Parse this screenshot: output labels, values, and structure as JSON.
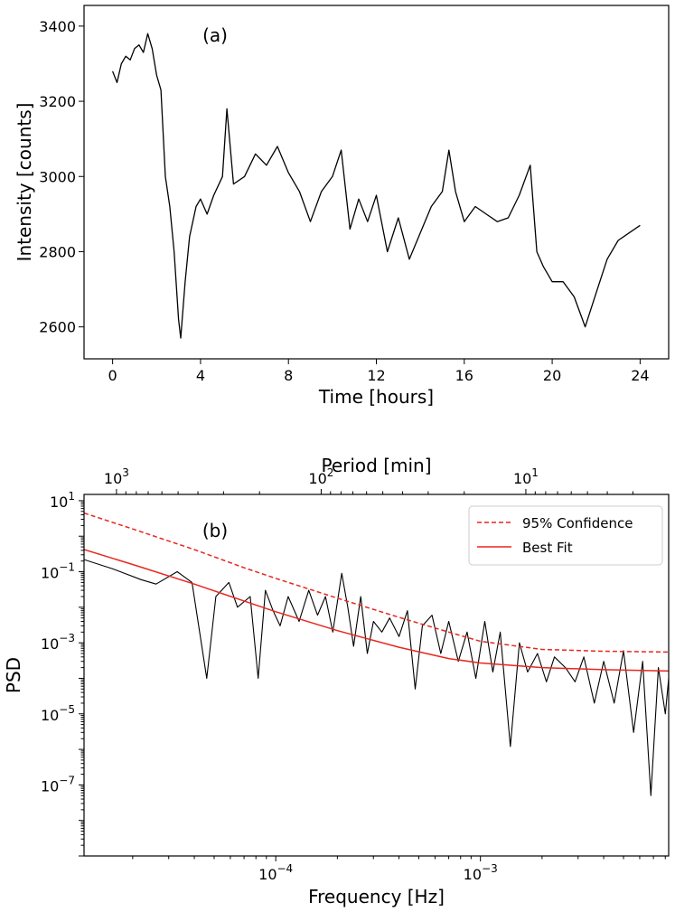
{
  "chart_data": [
    {
      "type": "line",
      "panel_label": "(a)",
      "xlabel": "Time [hours]",
      "ylabel": "Intensity [counts]",
      "xlim": [
        -1.3,
        25.3
      ],
      "ylim": [
        2515,
        3455
      ],
      "x_ticks": [
        0,
        4,
        8,
        12,
        16,
        20,
        24
      ],
      "x_tick_labels": [
        "0",
        "4",
        "8",
        "12",
        "16",
        "20",
        "24"
      ],
      "y_ticks": [
        2600,
        2800,
        3000,
        3200,
        3400
      ],
      "y_tick_labels": [
        "2600",
        "2800",
        "3000",
        "3200",
        "3400"
      ],
      "grid": false,
      "series": [
        {
          "color": "#000000",
          "x": [
            0,
            0.2,
            0.4,
            0.6,
            0.8,
            1.0,
            1.2,
            1.4,
            1.6,
            1.8,
            2.0,
            2.2,
            2.4,
            2.6,
            2.8,
            3.0,
            3.1,
            3.3,
            3.5,
            3.8,
            4.0,
            4.3,
            4.6,
            5.0,
            5.2,
            5.5,
            6.0,
            6.5,
            7.0,
            7.5,
            8.0,
            8.5,
            9.0,
            9.5,
            10.0,
            10.4,
            10.8,
            11.2,
            11.6,
            12.0,
            12.5,
            13.0,
            13.5,
            14.0,
            14.5,
            15.0,
            15.3,
            15.6,
            16.0,
            16.5,
            17.0,
            17.5,
            18.0,
            18.5,
            19.0,
            19.3,
            19.6,
            20.0,
            20.5,
            21.0,
            21.5,
            22.0,
            22.5,
            23.0,
            23.5,
            24.0
          ],
          "values": [
            3280,
            3250,
            3300,
            3320,
            3310,
            3340,
            3350,
            3330,
            3380,
            3340,
            3270,
            3230,
            3000,
            2920,
            2800,
            2620,
            2570,
            2720,
            2840,
            2920,
            2940,
            2900,
            2950,
            3000,
            3180,
            2980,
            3000,
            3060,
            3030,
            3080,
            3010,
            2960,
            2880,
            2960,
            3000,
            3070,
            2860,
            2940,
            2880,
            2950,
            2800,
            2890,
            2780,
            2850,
            2920,
            2960,
            3070,
            2960,
            2880,
            2920,
            2900,
            2880,
            2890,
            2950,
            3030,
            2800,
            2760,
            2720,
            2720,
            2680,
            2600,
            2690,
            2780,
            2830,
            2850,
            2870
          ]
        }
      ]
    },
    {
      "type": "line",
      "panel_label": "(b)",
      "xlabel": "Frequency [Hz]",
      "ylabel": "PSD",
      "x_scale": "log",
      "y_scale": "log",
      "xlim": [
        1.157e-05,
        0.00831
      ],
      "ylim": [
        1e-09,
        15
      ],
      "x_ticks": [
        0.0001,
        0.001
      ],
      "x_tick_labels": [
        {
          "base": "10",
          "exp": "−4"
        },
        {
          "base": "10",
          "exp": "−3"
        }
      ],
      "y_ticks": [
        1e-07,
        1e-05,
        0.001,
        0.1,
        10
      ],
      "y_tick_labels": [
        {
          "base": "10",
          "exp": "−7"
        },
        {
          "base": "10",
          "exp": "−5"
        },
        {
          "base": "10",
          "exp": "−3"
        },
        {
          "base": "10",
          "exp": "−1"
        },
        {
          "base": "10",
          "exp": "1"
        }
      ],
      "top_axis": {
        "label": "Period [min]",
        "ticks": [
          1000,
          100,
          10
        ],
        "tick_labels": [
          {
            "base": "10",
            "exp": "3"
          },
          {
            "base": "10",
            "exp": "2"
          },
          {
            "base": "10",
            "exp": "1"
          }
        ]
      },
      "legend_position": "top-right",
      "grid": false,
      "series": [
        {
          "name": "95% Confidence",
          "color": "#e8271e",
          "style": "dashed",
          "x": [
            1.157e-05,
            2e-05,
            4e-05,
            7e-05,
            0.0001,
            0.0002,
            0.0004,
            0.0007,
            0.001,
            0.002,
            0.004,
            0.00831
          ],
          "values": [
            4.5,
            1.6,
            0.42,
            0.13,
            0.065,
            0.018,
            0.0052,
            0.002,
            0.0011,
            0.00065,
            0.00058,
            0.00055
          ]
        },
        {
          "name": "Best Fit",
          "color": "#e8271e",
          "style": "solid",
          "x": [
            1.157e-05,
            2e-05,
            4e-05,
            7e-05,
            0.0001,
            0.0002,
            0.0004,
            0.0007,
            0.001,
            0.002,
            0.004,
            0.00831
          ],
          "values": [
            0.42,
            0.16,
            0.045,
            0.015,
            0.0075,
            0.0022,
            0.00075,
            0.00036,
            0.00027,
            0.0002,
            0.000175,
            0.00016
          ]
        },
        {
          "color": "#000000",
          "style": "solid",
          "x": [
            1.157e-05,
            1.6e-05,
            2.2e-05,
            2.6e-05,
            3.3e-05,
            3.9e-05,
            4.6e-05,
            5.1e-05,
            5.9e-05,
            6.5e-05,
            7.5e-05,
            8.2e-05,
            8.9e-05,
            9.7e-05,
            0.000105,
            0.000115,
            0.00013,
            0.000145,
            0.00016,
            0.000175,
            0.00019,
            0.00021,
            0.000225,
            0.00024,
            0.00026,
            0.00028,
            0.0003,
            0.00033,
            0.00036,
            0.0004,
            0.00044,
            0.00048,
            0.00052,
            0.00058,
            0.00064,
            0.0007,
            0.00078,
            0.00086,
            0.00095,
            0.00105,
            0.00115,
            0.00125,
            0.0014,
            0.00155,
            0.0017,
            0.0019,
            0.0021,
            0.0023,
            0.0026,
            0.0029,
            0.0032,
            0.0036,
            0.004,
            0.0045,
            0.005,
            0.0056,
            0.0062,
            0.0068,
            0.0074,
            0.008,
            0.00831
          ],
          "values": [
            0.22,
            0.12,
            0.06,
            0.045,
            0.1,
            0.05,
            0.0001,
            0.02,
            0.05,
            0.01,
            0.02,
            0.0001,
            0.03,
            0.008,
            0.003,
            0.02,
            0.004,
            0.03,
            0.006,
            0.02,
            0.002,
            0.09,
            0.01,
            0.0008,
            0.02,
            0.0005,
            0.004,
            0.002,
            0.005,
            0.0015,
            0.008,
            5e-05,
            0.003,
            0.006,
            0.0005,
            0.004,
            0.0003,
            0.002,
            0.0001,
            0.004,
            0.00015,
            0.002,
            1.2e-06,
            0.001,
            0.00015,
            0.0005,
            8e-05,
            0.0004,
            0.0002,
            8e-05,
            0.0004,
            2e-05,
            0.0003,
            2e-05,
            0.0006,
            3e-06,
            0.0003,
            5e-08,
            0.0002,
            1e-05,
            0.0001
          ]
        }
      ]
    }
  ]
}
